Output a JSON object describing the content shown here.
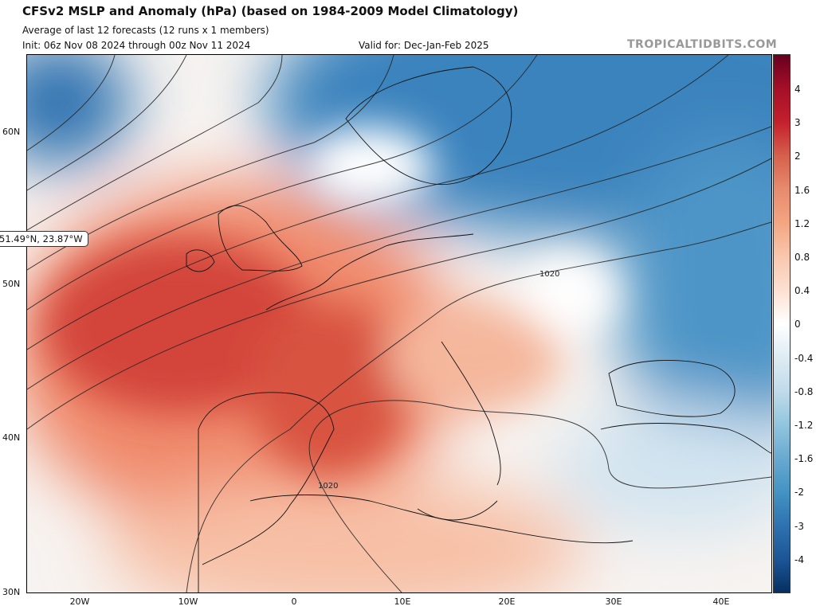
{
  "header": {
    "title": "CFSv2 MSLP and Anomaly (hPa) (based on 1984-2009 Model Climatology)",
    "subtitle": "Average of last 12 forecasts (12 runs x 1 members)",
    "init": "Init: 06z Nov 08 2024 through 00z Nov 11 2024",
    "valid": "Valid for: Dec-Jan-Feb 2025",
    "brand": "TROPICALTIDBITS.COM"
  },
  "map": {
    "lat_labels": [
      "60N",
      "50N",
      "40N",
      "30N"
    ],
    "lon_labels": [
      "20W",
      "10W",
      "0",
      "10E",
      "20E",
      "30E",
      "40E"
    ],
    "contour_labels": [
      "1020",
      "1020"
    ],
    "cursor_readout": "51.49°N, 23.87°W"
  },
  "colorbar": {
    "labels": [
      "4",
      "3",
      "2",
      "1.6",
      "1.2",
      "0.8",
      "0.4",
      "0",
      "-0.4",
      "-0.8",
      "-1.2",
      "-1.6",
      "-2",
      "-3",
      "-4"
    ],
    "colors": [
      "#67001f",
      "#a50f27",
      "#c4202d",
      "#d6604d",
      "#e78b6e",
      "#f4a582",
      "#f9c7ad",
      "#fde0d2",
      "#ffffff",
      "#deebf3",
      "#c1dbea",
      "#92c5de",
      "#6aa9d0",
      "#4393c3",
      "#2f72b0",
      "#1d5597",
      "#053061"
    ]
  }
}
